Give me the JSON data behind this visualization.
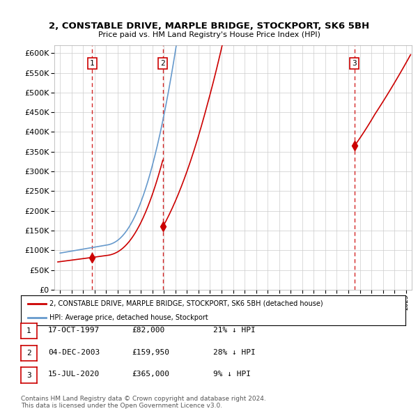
{
  "title": "2, CONSTABLE DRIVE, MARPLE BRIDGE, STOCKPORT, SK6 5BH",
  "subtitle": "Price paid vs. HM Land Registry's House Price Index (HPI)",
  "ylim": [
    0,
    620000
  ],
  "yticks": [
    0,
    50000,
    100000,
    150000,
    200000,
    250000,
    300000,
    350000,
    400000,
    450000,
    500000,
    550000,
    600000
  ],
  "xlim_start": 1994.5,
  "xlim_end": 2025.5,
  "sale_dates": [
    1997.79,
    2003.92,
    2020.54
  ],
  "sale_prices": [
    82000,
    159950,
    365000
  ],
  "sale_labels": [
    "1",
    "2",
    "3"
  ],
  "legend_property_label": "2, CONSTABLE DRIVE, MARPLE BRIDGE, STOCKPORT, SK6 5BH (detached house)",
  "legend_hpi_label": "HPI: Average price, detached house, Stockport",
  "property_color": "#cc0000",
  "hpi_color": "#6699cc",
  "dashed_line_color": "#cc0000",
  "table_entries": [
    {
      "label": "1",
      "date": "17-OCT-1997",
      "price": "£82,000",
      "note": "21% ↓ HPI"
    },
    {
      "label": "2",
      "date": "04-DEC-2003",
      "price": "£159,950",
      "note": "28% ↓ HPI"
    },
    {
      "label": "3",
      "date": "15-JUL-2020",
      "price": "£365,000",
      "note": "9% ↓ HPI"
    }
  ],
  "footer_line1": "Contains HM Land Registry data © Crown copyright and database right 2024.",
  "footer_line2": "This data is licensed under the Open Government Licence v3.0.",
  "background_color": "#ffffff",
  "grid_color": "#cccccc"
}
